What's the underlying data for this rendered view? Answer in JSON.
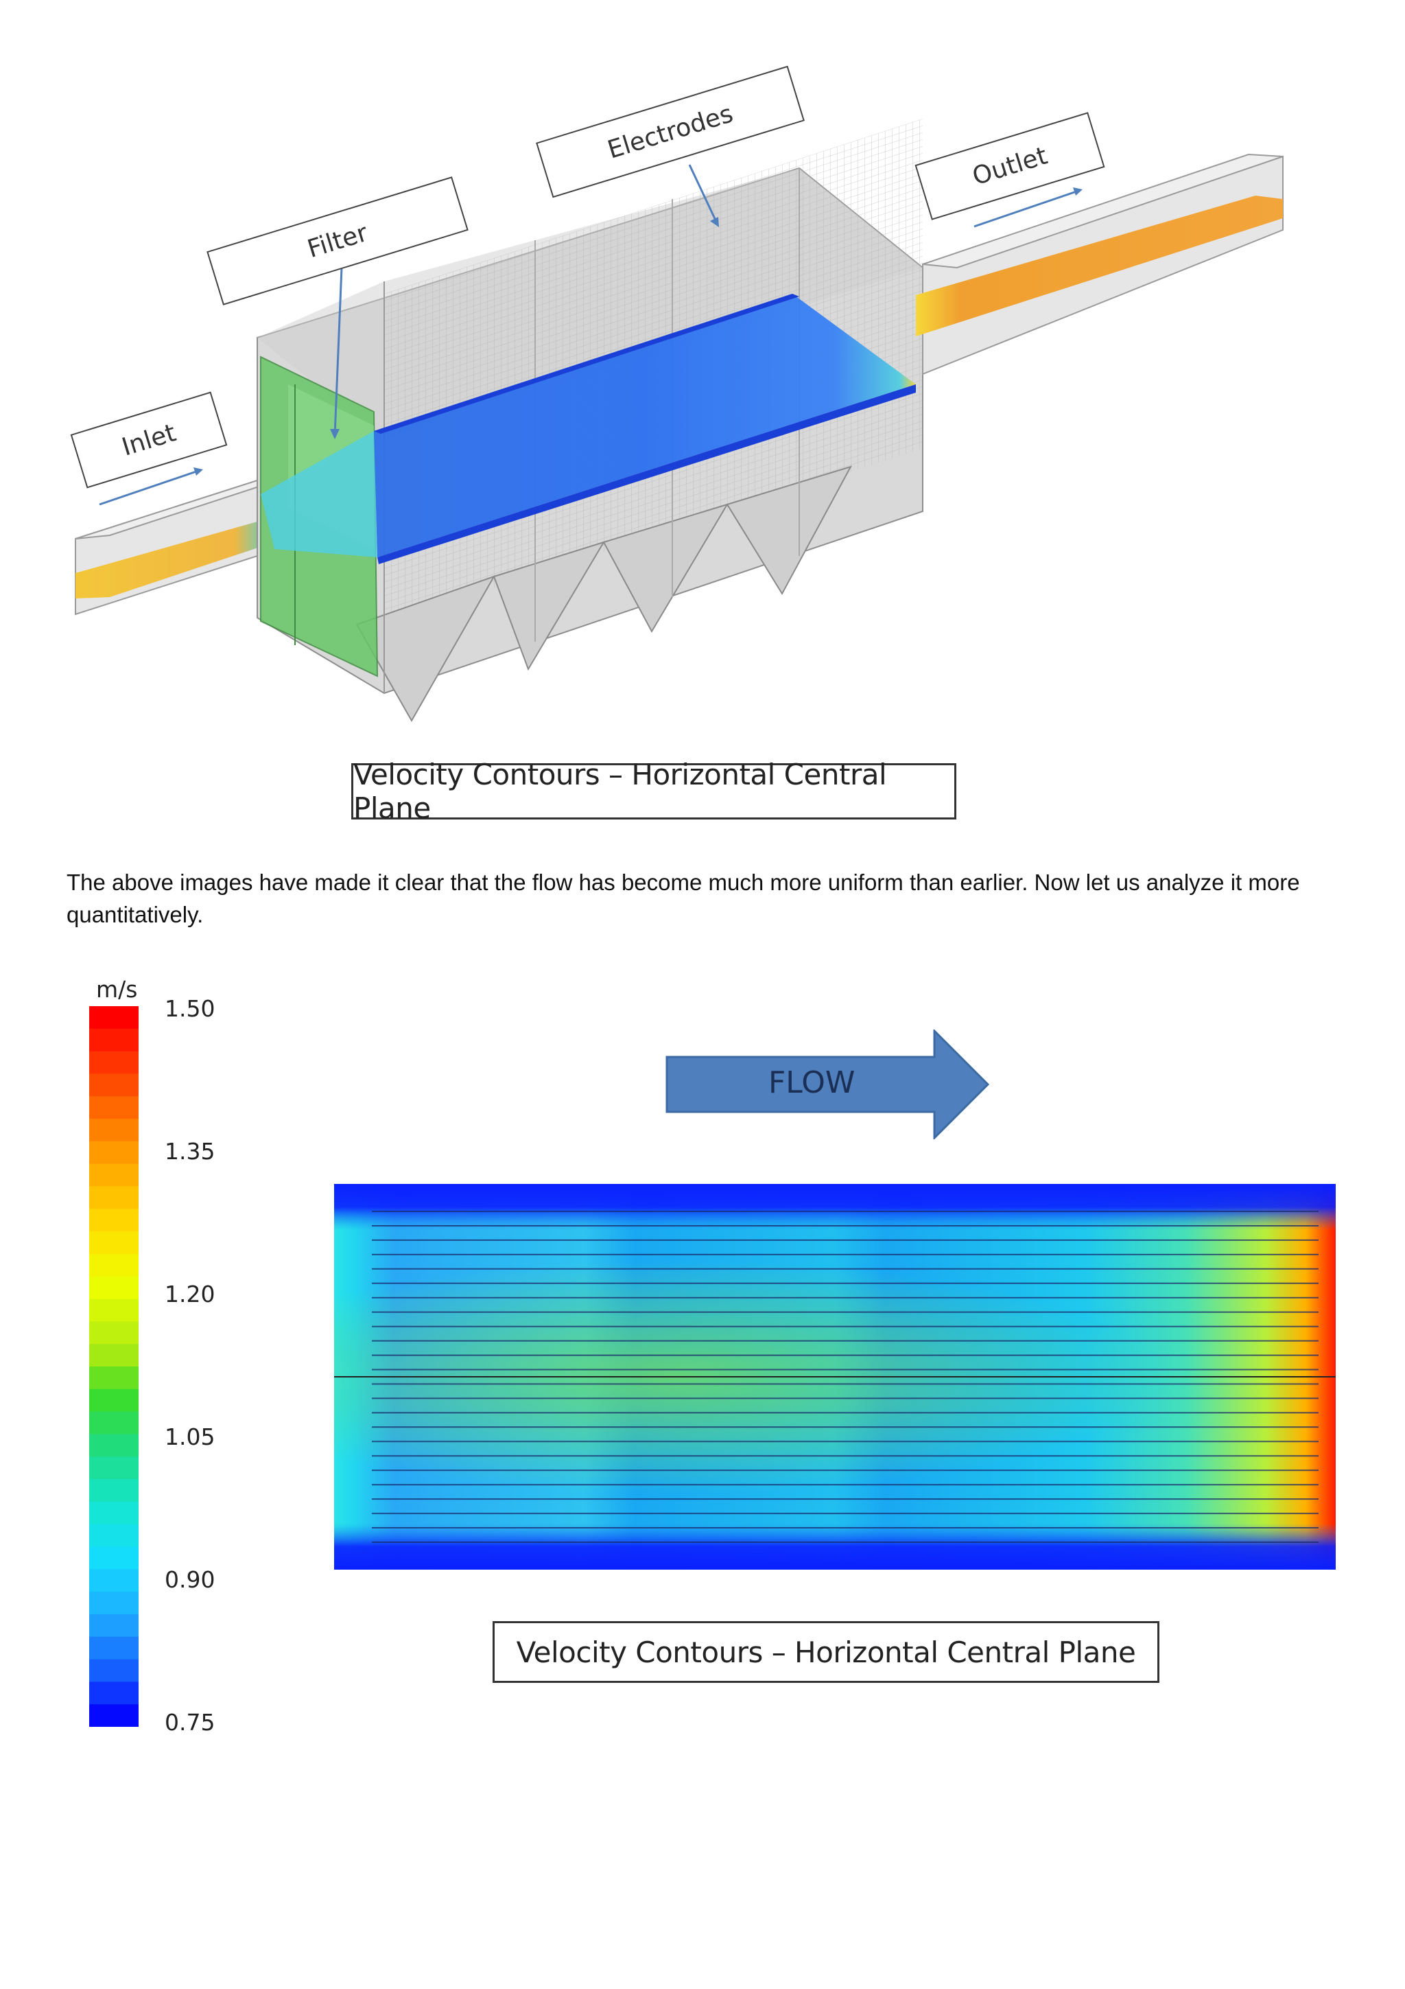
{
  "figure1": {
    "labels": {
      "inlet": "Inlet",
      "filter": "Filter",
      "electrodes": "Electrodes",
      "outlet": "Outlet"
    },
    "caption": "Velocity Contours – Horizontal Central Plane"
  },
  "paragraph": "The above images have made it clear that the flow has become much more uniform than earlier. Now let us analyze it more quantitatively.",
  "figure2": {
    "unit": "m/s",
    "legend_ticks": [
      "1.50",
      "1.35",
      "1.20",
      "1.05",
      "0.90",
      "0.75"
    ],
    "flow_label": "FLOW",
    "caption": "Velocity Contours – Horizontal Central Plane"
  },
  "colors": {
    "fast": "#ff0000",
    "slow": "#0010ff",
    "arrow": "#4f7fbd"
  }
}
